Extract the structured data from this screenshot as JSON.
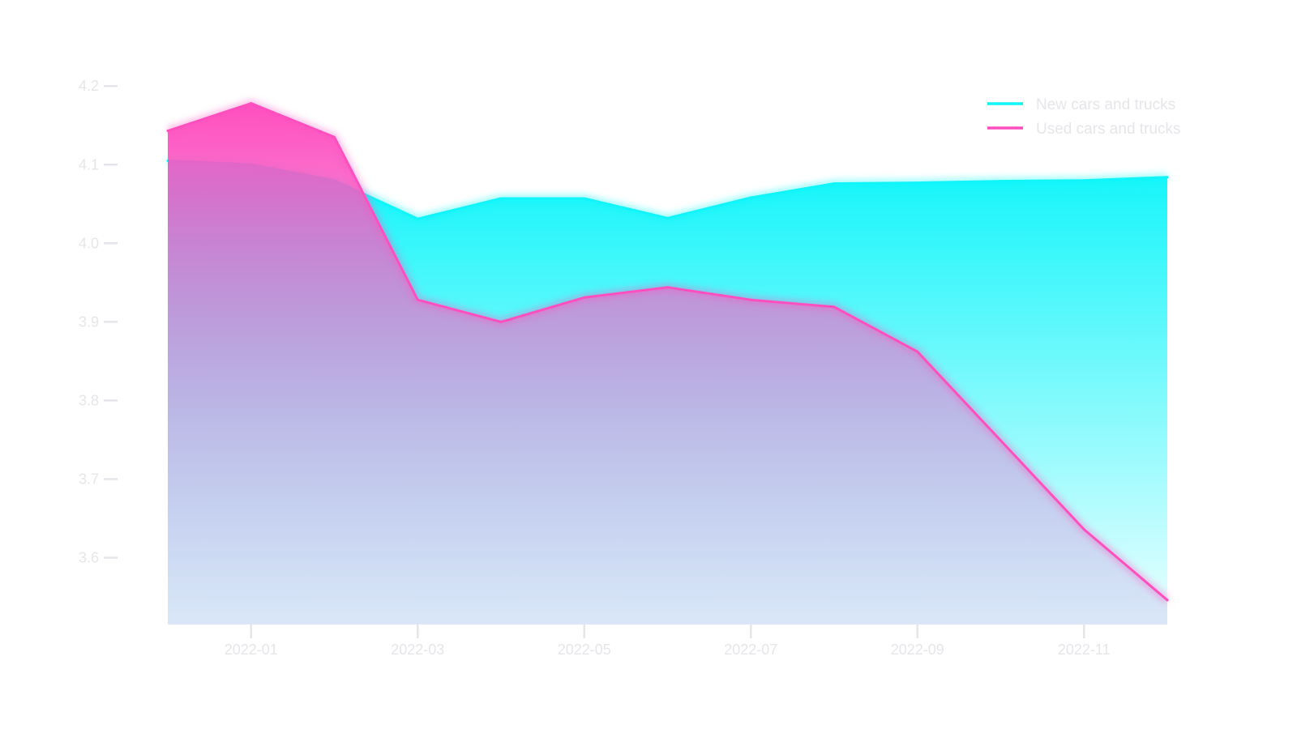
{
  "chart_data": {
    "type": "area",
    "title": "",
    "xlabel": "",
    "ylabel": "",
    "x": [
      "2021-12",
      "2022-01",
      "2022-02",
      "2022-03",
      "2022-04",
      "2022-05",
      "2022-06",
      "2022-07",
      "2022-08",
      "2022-09",
      "2022-10",
      "2022-11",
      "2022-12"
    ],
    "x_ticks": [
      "2022-01",
      "2022-03",
      "2022-05",
      "2022-07",
      "2022-09",
      "2022-11"
    ],
    "y_ticks": [
      3.6,
      3.7,
      3.8,
      3.9,
      4.0,
      4.1,
      4.2
    ],
    "ylim": [
      3.515,
      4.22
    ],
    "grid": false,
    "legend_position": "top-right",
    "series": [
      {
        "name": "New cars and trucks",
        "color": "#0ff5fa",
        "values": [
          4.105,
          4.1,
          4.08,
          4.031,
          4.057,
          4.057,
          4.032,
          4.058,
          4.076,
          4.077,
          4.079,
          4.08,
          4.084
        ]
      },
      {
        "name": "Used cars and trucks",
        "color": "#ff4fbf",
        "values": [
          4.143,
          4.178,
          4.135,
          3.928,
          3.9,
          3.931,
          3.944,
          3.928,
          3.919,
          3.862,
          3.749,
          3.636,
          3.546
        ]
      }
    ]
  }
}
